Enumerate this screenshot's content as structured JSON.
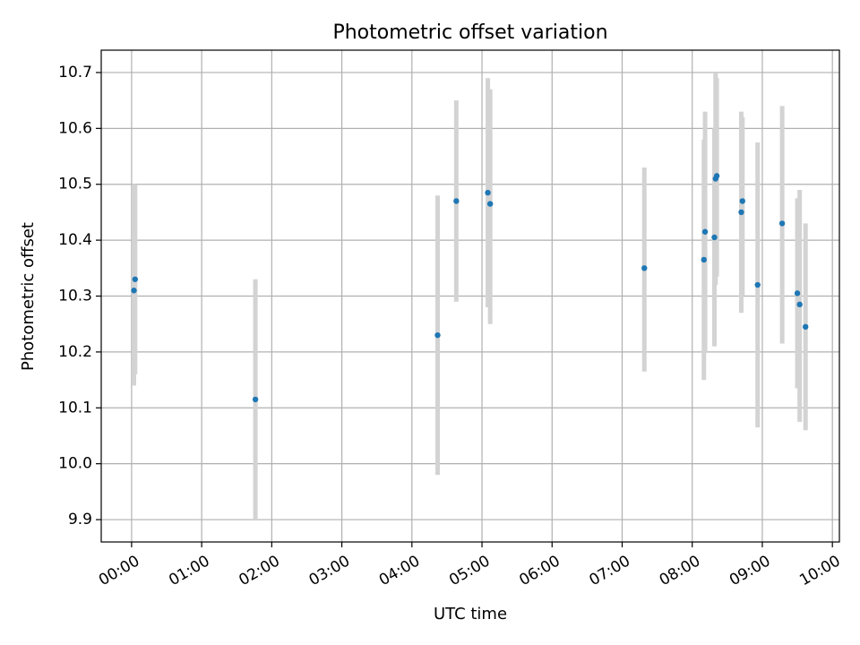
{
  "chart_data": {
    "type": "scatter",
    "title": "Photometric offset variation",
    "xlabel": "UTC time",
    "ylabel": "Photometric offset",
    "xlim": [
      "23:34",
      "10:06"
    ],
    "ylim": [
      9.86,
      10.74
    ],
    "x_ticks": [
      "00:00",
      "01:00",
      "02:00",
      "03:00",
      "04:00",
      "05:00",
      "06:00",
      "07:00",
      "08:00",
      "09:00",
      "10:00"
    ],
    "y_ticks": [
      "9.9",
      "10.0",
      "10.1",
      "10.2",
      "10.3",
      "10.4",
      "10.5",
      "10.6",
      "10.7"
    ],
    "grid": true,
    "colors": {
      "point": "#1f77b4",
      "error_bar": "#d3d3d3",
      "grid": "#b0b0b0"
    },
    "points": [
      {
        "t": "00:02",
        "y": 10.31,
        "err_low": 10.14,
        "err_high": 10.5
      },
      {
        "t": "00:03",
        "y": 10.33,
        "err_low": 10.16,
        "err_high": 10.5
      },
      {
        "t": "01:46",
        "y": 10.115,
        "err_low": 9.9,
        "err_high": 10.33
      },
      {
        "t": "04:22",
        "y": 10.23,
        "err_low": 9.98,
        "err_high": 10.48
      },
      {
        "t": "04:38",
        "y": 10.47,
        "err_low": 10.29,
        "err_high": 10.65
      },
      {
        "t": "05:05",
        "y": 10.485,
        "err_low": 10.28,
        "err_high": 10.69
      },
      {
        "t": "05:07",
        "y": 10.465,
        "err_low": 10.25,
        "err_high": 10.67
      },
      {
        "t": "07:19",
        "y": 10.35,
        "err_low": 10.165,
        "err_high": 10.53
      },
      {
        "t": "08:10",
        "y": 10.365,
        "err_low": 10.15,
        "err_high": 10.58
      },
      {
        "t": "08:11",
        "y": 10.415,
        "err_low": 10.2,
        "err_high": 10.63
      },
      {
        "t": "08:19",
        "y": 10.405,
        "err_low": 10.21,
        "err_high": 10.6
      },
      {
        "t": "08:20",
        "y": 10.51,
        "err_low": 10.32,
        "err_high": 10.7
      },
      {
        "t": "08:21",
        "y": 10.515,
        "err_low": 10.335,
        "err_high": 10.69
      },
      {
        "t": "08:42",
        "y": 10.45,
        "err_low": 10.27,
        "err_high": 10.63
      },
      {
        "t": "08:43",
        "y": 10.47,
        "err_low": 10.3,
        "err_high": 10.62
      },
      {
        "t": "08:56",
        "y": 10.32,
        "err_low": 10.065,
        "err_high": 10.575
      },
      {
        "t": "09:17",
        "y": 10.43,
        "err_low": 10.215,
        "err_high": 10.64
      },
      {
        "t": "09:30",
        "y": 10.305,
        "err_low": 10.135,
        "err_high": 10.475
      },
      {
        "t": "09:32",
        "y": 10.285,
        "err_low": 10.075,
        "err_high": 10.49
      },
      {
        "t": "09:37",
        "y": 10.245,
        "err_low": 10.06,
        "err_high": 10.43
      }
    ]
  }
}
